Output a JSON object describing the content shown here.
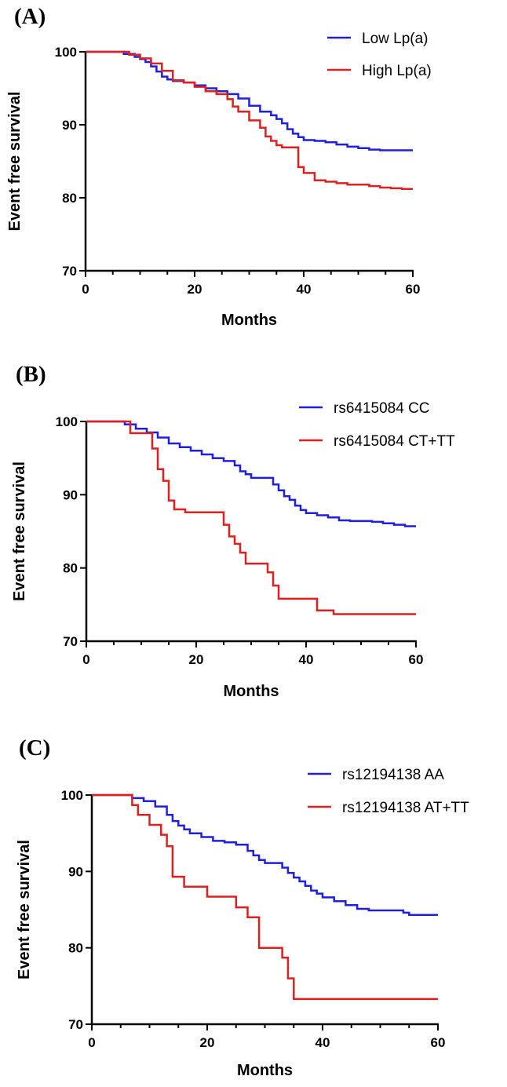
{
  "chart_data": [
    {
      "type": "line",
      "step": true,
      "panel_label": "(A)",
      "xlabel": "Months",
      "ylabel": "Event free survival",
      "xlim": [
        0,
        60
      ],
      "ylim": [
        70,
        100
      ],
      "x_ticks": [
        0,
        20,
        40,
        60
      ],
      "y_ticks": [
        70,
        80,
        90,
        100
      ],
      "legend_position": "top-right",
      "series": [
        {
          "name": "Low Lp(a)",
          "color": "#1f1fe0",
          "x": [
            0,
            7,
            9,
            10,
            11,
            12,
            13,
            14,
            15,
            16,
            18,
            20,
            22,
            24,
            26,
            28,
            30,
            32,
            34,
            35,
            36,
            37,
            38,
            39,
            40,
            42,
            44,
            46,
            48,
            50,
            52,
            54,
            56,
            58,
            60
          ],
          "y": [
            100,
            99.7,
            99.3,
            99.0,
            98.6,
            98.0,
            97.3,
            96.6,
            96.2,
            96.0,
            95.8,
            95.4,
            95.0,
            94.6,
            94.2,
            93.6,
            92.6,
            91.8,
            91.3,
            90.8,
            90.2,
            89.4,
            88.8,
            88.3,
            87.9,
            87.8,
            87.6,
            87.3,
            87.0,
            86.8,
            86.6,
            86.5,
            86.5,
            86.5,
            86.5
          ]
        },
        {
          "name": "High Lp(a)",
          "color": "#e01f1f",
          "x": [
            0,
            8,
            10,
            12,
            14,
            16,
            18,
            20,
            22,
            24,
            26,
            27,
            28,
            30,
            32,
            33,
            34,
            35,
            36,
            37,
            39,
            40,
            42,
            44,
            46,
            48,
            50,
            52,
            54,
            56,
            58,
            60
          ],
          "y": [
            100,
            99.6,
            99.1,
            98.4,
            97.4,
            96.1,
            95.8,
            95.2,
            94.6,
            94.2,
            93.5,
            92.5,
            91.8,
            90.6,
            89.6,
            88.4,
            87.8,
            87.2,
            86.9,
            86.9,
            84.2,
            83.4,
            82.4,
            82.2,
            82.0,
            81.8,
            81.8,
            81.6,
            81.4,
            81.3,
            81.2,
            81.2
          ]
        }
      ]
    },
    {
      "type": "line",
      "step": true,
      "panel_label": "(B)",
      "xlabel": "Months",
      "ylabel": "Event free survival",
      "xlim": [
        0,
        60
      ],
      "ylim": [
        70,
        100
      ],
      "x_ticks": [
        0,
        20,
        40,
        60
      ],
      "y_ticks": [
        70,
        80,
        90,
        100
      ],
      "legend_position": "top-right",
      "series": [
        {
          "name": "rs6415084 CC",
          "color": "#1f1fe0",
          "x": [
            0,
            7,
            9,
            11,
            13,
            15,
            17,
            19,
            21,
            23,
            25,
            27,
            28,
            29,
            30,
            31,
            32,
            34,
            35,
            36,
            37,
            38,
            39,
            40,
            42,
            44,
            46,
            48,
            50,
            52,
            54,
            56,
            58,
            60
          ],
          "y": [
            100,
            99.6,
            99.0,
            98.5,
            97.8,
            97.0,
            96.5,
            96.0,
            95.5,
            95.0,
            94.6,
            94.0,
            93.2,
            92.8,
            92.3,
            92.3,
            92.3,
            91.4,
            90.6,
            89.8,
            89.3,
            88.5,
            87.9,
            87.5,
            87.2,
            86.9,
            86.5,
            86.4,
            86.4,
            86.3,
            86.1,
            85.9,
            85.7,
            85.7
          ]
        },
        {
          "name": "rs6415084 CT+TT",
          "color": "#e01f1f",
          "x": [
            0,
            8,
            12,
            13,
            14,
            15,
            16,
            18,
            20,
            25,
            26,
            27,
            28,
            29,
            33,
            34,
            35,
            42,
            45,
            60
          ],
          "y": [
            100,
            98.4,
            96.3,
            93.5,
            91.9,
            89.2,
            88.0,
            87.6,
            87.6,
            85.9,
            84.3,
            83.3,
            82.1,
            80.6,
            79.4,
            77.6,
            75.8,
            74.2,
            73.7,
            73.7
          ]
        }
      ]
    },
    {
      "type": "line",
      "step": true,
      "panel_label": "(C)",
      "xlabel": "Months",
      "ylabel": "Event free survival",
      "xlim": [
        0,
        60
      ],
      "ylim": [
        70,
        100
      ],
      "x_ticks": [
        0,
        20,
        40,
        60
      ],
      "y_ticks": [
        70,
        80,
        90,
        100
      ],
      "legend_position": "top-right",
      "series": [
        {
          "name": "rs12194138 AA",
          "color": "#1f1fe0",
          "x": [
            0,
            7,
            9,
            11,
            13,
            14,
            15,
            16,
            17,
            19,
            21,
            23,
            25,
            27,
            28,
            29,
            30,
            31,
            33,
            34,
            35,
            36,
            37,
            38,
            39,
            40,
            42,
            44,
            46,
            48,
            50,
            52,
            54,
            55,
            58,
            60
          ],
          "y": [
            100,
            99.6,
            99.2,
            98.5,
            97.4,
            96.6,
            96.0,
            95.5,
            95.0,
            94.5,
            94.0,
            93.8,
            93.5,
            92.7,
            92.1,
            91.5,
            91.1,
            91.1,
            90.5,
            89.8,
            89.2,
            88.7,
            88.1,
            87.5,
            87.1,
            86.6,
            86.1,
            85.6,
            85.1,
            84.9,
            84.9,
            84.9,
            84.6,
            84.3,
            84.3,
            84.3
          ]
        },
        {
          "name": "rs12194138 AT+TT",
          "color": "#e01f1f",
          "x": [
            0,
            7,
            8,
            10,
            12,
            13,
            14,
            16,
            20,
            25,
            27,
            29,
            33,
            34,
            35,
            60
          ],
          "y": [
            100,
            98.7,
            97.4,
            96.1,
            94.8,
            93.3,
            89.3,
            88.0,
            86.7,
            85.3,
            84.0,
            80.0,
            78.7,
            76.0,
            73.3,
            73.3
          ]
        }
      ]
    }
  ]
}
